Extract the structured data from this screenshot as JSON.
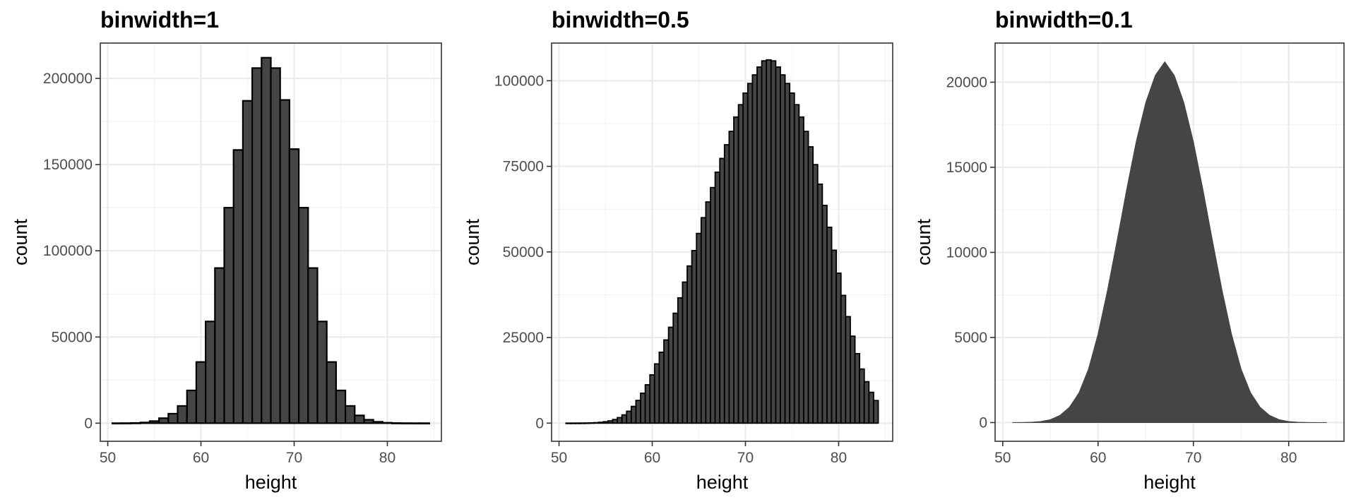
{
  "chart_data": [
    {
      "type": "bar",
      "title": "binwidth=1",
      "xlabel": "height",
      "ylabel": "count",
      "xlim": [
        49.2,
        85.8
      ],
      "ylim": [
        -10500,
        220500
      ],
      "xticks": [
        50,
        60,
        70,
        80
      ],
      "yticks": [
        0,
        50000,
        100000,
        150000,
        200000
      ],
      "ytick_labels": [
        "0",
        "50000",
        "100000",
        "150000",
        "200000"
      ],
      "binwidth": 1,
      "bar_fill": "#454545",
      "bar_outline": "#000000",
      "x": [
        51,
        52,
        53,
        54,
        55,
        56,
        57,
        58,
        59,
        60,
        61,
        62,
        63,
        64,
        65,
        66,
        67,
        68,
        69,
        70,
        71,
        72,
        73,
        74,
        75,
        76,
        77,
        78,
        79,
        80,
        81,
        82,
        83,
        84
      ],
      "values": [
        10,
        40,
        130,
        400,
        1200,
        2900,
        5500,
        10000,
        19000,
        35500,
        59000,
        90000,
        125000,
        158500,
        187000,
        206000,
        212000,
        206000,
        187500,
        159000,
        125000,
        90000,
        59000,
        35500,
        19000,
        10000,
        4500,
        2000,
        800,
        250,
        80,
        25,
        8,
        2
      ]
    },
    {
      "type": "bar",
      "title": "binwidth=0.5",
      "xlabel": "height",
      "ylabel": "count",
      "xlim": [
        49.2,
        85.8
      ],
      "ylim": [
        -5300,
        111000
      ],
      "xticks": [
        50,
        60,
        70,
        80
      ],
      "yticks": [
        0,
        25000,
        50000,
        75000,
        100000
      ],
      "ytick_labels": [
        "0",
        "25000",
        "50000",
        "75000",
        "100000"
      ],
      "binwidth": 0.5,
      "bar_fill": "#454545",
      "bar_outline": "#000000",
      "x": [
        51,
        51.5,
        52,
        52.5,
        53,
        53.5,
        54,
        54.5,
        55,
        55.5,
        56,
        56.5,
        57,
        57.5,
        58,
        58.5,
        59,
        59.5,
        60,
        60.5,
        61,
        61.5,
        62,
        62.5,
        63,
        63.5,
        64,
        64.5,
        65,
        65.5,
        66,
        66.5,
        67,
        67.5,
        68,
        68.5,
        69,
        69.5,
        70,
        70.5,
        71,
        71.5,
        72,
        72.5,
        73,
        73.5,
        74,
        74.5,
        75,
        75.5,
        76,
        76.5,
        77,
        77.5,
        78,
        78.5,
        79,
        79.5,
        80,
        80.5,
        81,
        81.5,
        82,
        82.5,
        83,
        83.5,
        84
      ],
      "values": [
        3,
        7,
        13,
        24,
        45,
        80,
        140,
        240,
        410,
        670,
        1060,
        1620,
        2410,
        3480,
        4880,
        6630,
        8750,
        11200,
        14100,
        17300,
        20700,
        24300,
        28000,
        32100,
        36600,
        41200,
        45900,
        50400,
        55400,
        60000,
        64600,
        68800,
        73300,
        77300,
        81300,
        85200,
        89400,
        93000,
        96400,
        99200,
        101700,
        104000,
        105800,
        106100,
        105800,
        104000,
        101700,
        99200,
        96400,
        93000,
        89400,
        85200,
        80700,
        75500,
        69800,
        63600,
        57200,
        50500,
        43800,
        37300,
        31100,
        25400,
        20300,
        15800,
        12100,
        9000,
        6600
      ]
    },
    {
      "type": "area",
      "title": "binwidth=0.1",
      "xlabel": "height",
      "ylabel": "count",
      "xlim": [
        49.2,
        85.8
      ],
      "ylim": [
        -1100,
        22300
      ],
      "xticks": [
        50,
        60,
        70,
        80
      ],
      "yticks": [
        0,
        5000,
        10000,
        15000,
        20000
      ],
      "ytick_labels": [
        "0",
        "5000",
        "10000",
        "15000",
        "20000"
      ],
      "binwidth": 0.1,
      "fill": "#454545",
      "x": [
        51,
        52,
        53,
        54,
        55,
        56,
        57,
        58,
        59,
        60,
        61,
        62,
        63,
        64,
        65,
        66,
        67,
        68,
        69,
        70,
        71,
        72,
        73,
        74,
        75,
        76,
        77,
        78,
        79,
        80,
        81,
        82,
        83,
        84
      ],
      "values": [
        0,
        5,
        20,
        60,
        170,
        420,
        900,
        1750,
        3150,
        5200,
        7800,
        10700,
        13700,
        16500,
        18800,
        20400,
        21200,
        20400,
        18800,
        16500,
        13700,
        10700,
        7800,
        5200,
        3150,
        1750,
        900,
        420,
        170,
        60,
        20,
        5,
        1,
        0
      ]
    }
  ]
}
